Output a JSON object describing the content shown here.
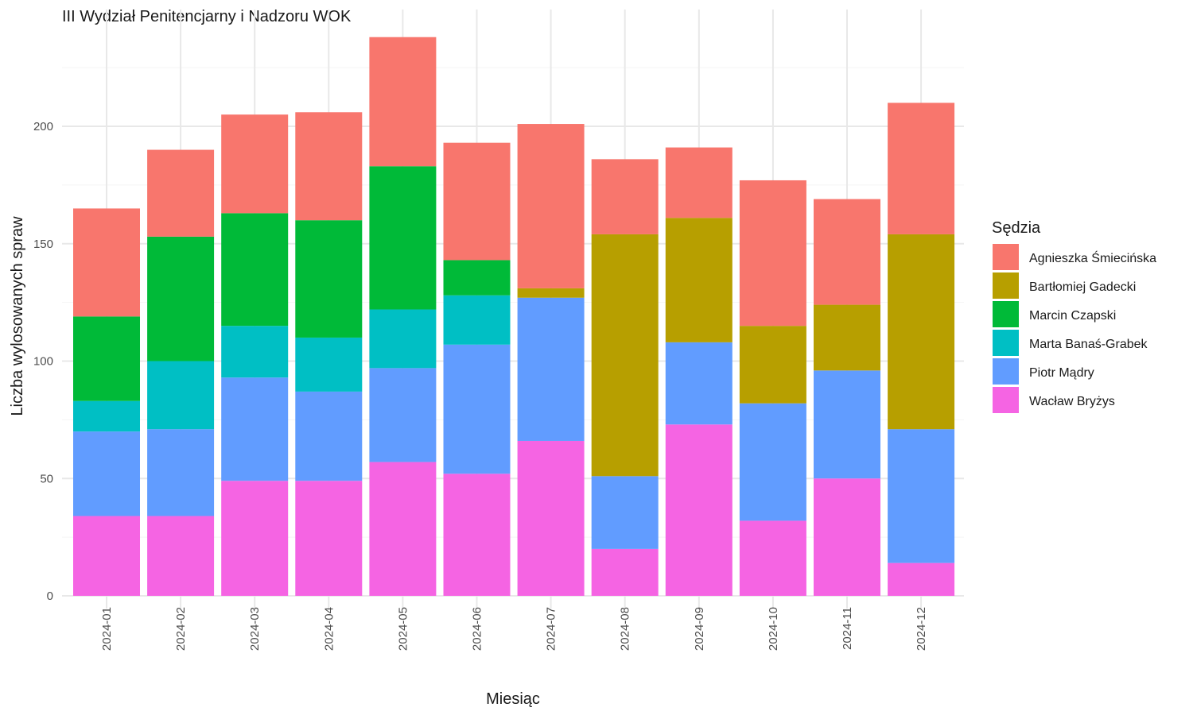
{
  "chart_data": {
    "type": "bar",
    "stacked": true,
    "title": "III Wydział Penitencjarny i Nadzoru WOK",
    "xlabel": "Miesiąc",
    "ylabel": "Liczba wylosowanych spraw",
    "ylim": [
      0,
      250
    ],
    "yticks": [
      0,
      50,
      100,
      150,
      200
    ],
    "grid": true,
    "legend_title": "Sędzia",
    "legend_position": "right",
    "categories": [
      "2024-01",
      "2024-02",
      "2024-03",
      "2024-04",
      "2024-05",
      "2024-06",
      "2024-07",
      "2024-08",
      "2024-09",
      "2024-10",
      "2024-11",
      "2024-12"
    ],
    "series": [
      {
        "name": "Wacław Bryżys",
        "color": "#F564E3",
        "values": [
          34,
          34,
          49,
          49,
          57,
          52,
          66,
          20,
          73,
          32,
          50,
          14
        ]
      },
      {
        "name": "Piotr Mądry",
        "color": "#619CFF",
        "values": [
          36,
          37,
          44,
          38,
          40,
          55,
          61,
          31,
          35,
          50,
          46,
          57
        ]
      },
      {
        "name": "Marta Banaś-Grabek",
        "color": "#00BFC4",
        "values": [
          13,
          29,
          22,
          23,
          25,
          21,
          0,
          0,
          0,
          0,
          0,
          0
        ]
      },
      {
        "name": "Marcin Czapski",
        "color": "#00BA38",
        "values": [
          36,
          53,
          48,
          50,
          61,
          15,
          0,
          0,
          0,
          0,
          0,
          0
        ]
      },
      {
        "name": "Bartłomiej Gadecki",
        "color": "#B79F00",
        "values": [
          0,
          0,
          0,
          0,
          0,
          0,
          4,
          103,
          53,
          33,
          28,
          83
        ]
      },
      {
        "name": "Agnieszka Śmiecińska",
        "color": "#F8766D",
        "values": [
          46,
          37,
          42,
          46,
          55,
          50,
          70,
          32,
          30,
          62,
          45,
          56
        ]
      }
    ],
    "legend_order": [
      "Agnieszka Śmiecińska",
      "Bartłomiej Gadecki",
      "Marcin Czapski",
      "Marta Banaś-Grabek",
      "Piotr Mądry",
      "Wacław Bryżys"
    ]
  }
}
